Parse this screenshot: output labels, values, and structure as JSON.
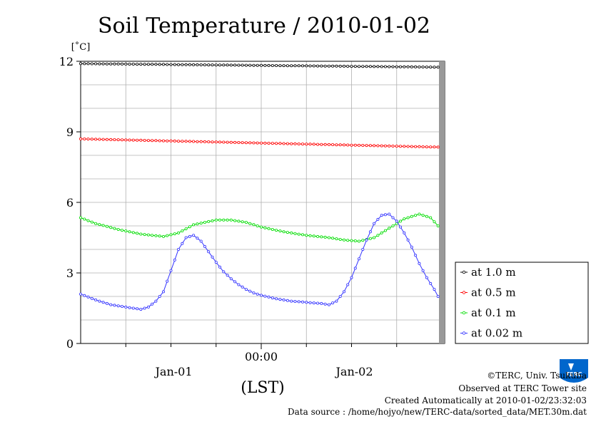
{
  "chart_data": {
    "type": "line",
    "title": "Soil Temperature / 2010-01-02",
    "ylabel": "[˚C]",
    "xlabel": "(LST)",
    "ylim": [
      0,
      12
    ],
    "yticks": [
      "0",
      "3",
      "6",
      "9",
      "12"
    ],
    "xticks": [
      {
        "label": "00:00",
        "day": "",
        "hour": 24
      },
      {
        "label": "",
        "day": "Jan-01",
        "hour": 12
      },
      {
        "label": "",
        "day": "Jan-02",
        "hour": 36
      }
    ],
    "xlim_hours": [
      0,
      48
    ],
    "grid": true,
    "legend_position": "right-bottom",
    "series": [
      {
        "name": "at 1.0 m",
        "color": "#000000",
        "anchors": [
          [
            0,
            11.9
          ],
          [
            47.5,
            11.75
          ]
        ]
      },
      {
        "name": "at 0.5 m",
        "color": "#ff0000",
        "anchors": [
          [
            0,
            8.7
          ],
          [
            47.5,
            8.35
          ]
        ]
      },
      {
        "name": "at 0.1 m",
        "color": "#00dd00",
        "anchors": [
          [
            0,
            5.35
          ],
          [
            2,
            5.1
          ],
          [
            5,
            4.85
          ],
          [
            8,
            4.65
          ],
          [
            11,
            4.55
          ],
          [
            13,
            4.7
          ],
          [
            15,
            5.05
          ],
          [
            18,
            5.25
          ],
          [
            20,
            5.25
          ],
          [
            22,
            5.15
          ],
          [
            24,
            4.95
          ],
          [
            27,
            4.75
          ],
          [
            30,
            4.6
          ],
          [
            33,
            4.5
          ],
          [
            35,
            4.4
          ],
          [
            37,
            4.35
          ],
          [
            39,
            4.5
          ],
          [
            41,
            4.9
          ],
          [
            43,
            5.3
          ],
          [
            45,
            5.5
          ],
          [
            46.5,
            5.35
          ],
          [
            47.5,
            5.0
          ]
        ]
      },
      {
        "name": "at 0.02 m",
        "color": "#3333ff",
        "anchors": [
          [
            0,
            2.1
          ],
          [
            2,
            1.85
          ],
          [
            4,
            1.65
          ],
          [
            6,
            1.55
          ],
          [
            8,
            1.45
          ],
          [
            9,
            1.55
          ],
          [
            10,
            1.8
          ],
          [
            11,
            2.2
          ],
          [
            12,
            3.1
          ],
          [
            13,
            4.0
          ],
          [
            14,
            4.5
          ],
          [
            15,
            4.6
          ],
          [
            16,
            4.35
          ],
          [
            17,
            3.9
          ],
          [
            18,
            3.45
          ],
          [
            19,
            3.05
          ],
          [
            20,
            2.75
          ],
          [
            21,
            2.5
          ],
          [
            22,
            2.3
          ],
          [
            23,
            2.15
          ],
          [
            24,
            2.05
          ],
          [
            26,
            1.9
          ],
          [
            28,
            1.8
          ],
          [
            30,
            1.75
          ],
          [
            32,
            1.7
          ],
          [
            33,
            1.65
          ],
          [
            34,
            1.8
          ],
          [
            35,
            2.2
          ],
          [
            36,
            2.8
          ],
          [
            37,
            3.6
          ],
          [
            38,
            4.4
          ],
          [
            39,
            5.1
          ],
          [
            40,
            5.45
          ],
          [
            41,
            5.5
          ],
          [
            42,
            5.2
          ],
          [
            43,
            4.7
          ],
          [
            44,
            4.1
          ],
          [
            45,
            3.4
          ],
          [
            46,
            2.8
          ],
          [
            47,
            2.3
          ],
          [
            47.5,
            2.0
          ]
        ]
      }
    ]
  },
  "credits": {
    "copyright": "©TERC, Univ. Tsukuba",
    "observed": "Observed at TERC Tower site",
    "created": "Created Automatically at 2010-01-02/23:32:03",
    "source": "Data source : /home/hojyo/new/TERC-data/sorted_data/MET.30m.dat"
  },
  "logo": {
    "icon": "terc-logo-icon",
    "text": "TERC",
    "color": "#0066cc"
  }
}
